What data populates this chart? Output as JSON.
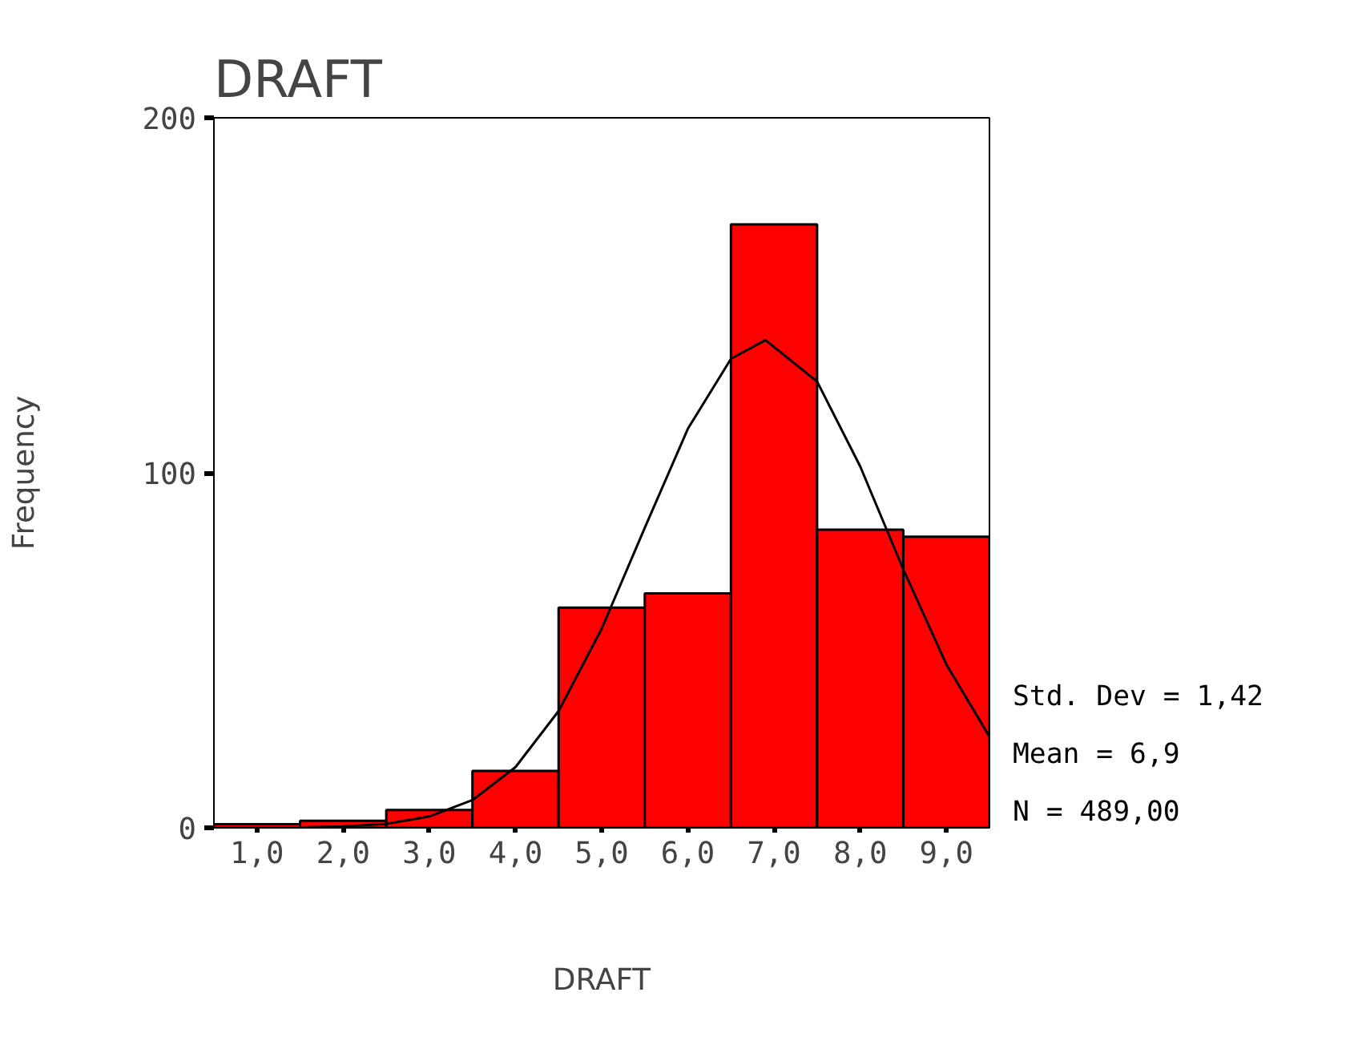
{
  "chart_data": {
    "type": "histogram",
    "title": "DRAFT",
    "xlabel": "DRAFT",
    "ylabel": "Frequency",
    "bins": [
      0.5,
      1.5,
      2.5,
      3.5,
      4.5,
      5.5,
      6.5,
      7.5,
      8.5,
      9.5
    ],
    "values": [
      1,
      2,
      5,
      16,
      62,
      66,
      170,
      84,
      82
    ],
    "color": "#ff0000",
    "series": [
      {
        "type": "line",
        "color": "#000000",
        "x": [
          1.5,
          2.0,
          2.5,
          3.0,
          3.5,
          4.0,
          4.5,
          5.0,
          5.5,
          6.0,
          6.5,
          6.9,
          7.5,
          8.0,
          8.5,
          9.0,
          9.5
        ],
        "values": [
          0.1,
          0.4,
          1.1,
          3.2,
          7.8,
          17.1,
          32.9,
          56.1,
          84.5,
          112.4,
          132.1,
          137.4,
          125.7,
          101.8,
          72.8,
          46.0,
          25.7
        ]
      }
    ],
    "xlim": [
      0.5,
      9.5
    ],
    "xticks": [
      {
        "value": 1,
        "label": "1,0"
      },
      {
        "value": 2,
        "label": "2,0"
      },
      {
        "value": 3,
        "label": "3,0"
      },
      {
        "value": 4,
        "label": "4,0"
      },
      {
        "value": 5,
        "label": "5,0"
      },
      {
        "value": 6,
        "label": "6,0"
      },
      {
        "value": 7,
        "label": "7,0"
      },
      {
        "value": 8,
        "label": "8,0"
      },
      {
        "value": 9,
        "label": "9,0"
      }
    ],
    "ylim": [
      0,
      200
    ],
    "yticks": [
      0,
      100,
      200
    ],
    "annotations": [
      "Std. Dev = 1,42",
      "Mean = 6,9",
      "N = 489,00"
    ],
    "grid": false
  }
}
